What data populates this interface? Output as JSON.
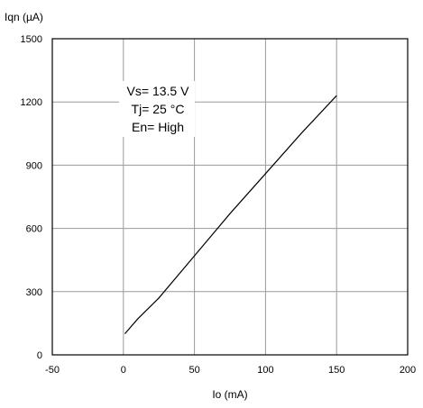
{
  "chart_data": {
    "type": "line",
    "title": "",
    "ylabel": "Iqn (µA)",
    "xlabel": "Io (mA)",
    "xlim": [
      -50,
      200
    ],
    "ylim": [
      0,
      1500
    ],
    "xticks": [
      "-50",
      "0",
      "50",
      "100",
      "150",
      "200"
    ],
    "yticks": [
      "0",
      "300",
      "600",
      "900",
      "1200",
      "1500"
    ],
    "grid": true,
    "legend": "none",
    "annotations": [
      "Vs= 13.5 V",
      "Tj= 25 °C",
      "En= High"
    ],
    "series": [
      {
        "x": [
          1,
          10,
          25,
          50,
          75,
          100,
          125,
          150
        ],
        "y": [
          100,
          170,
          270,
          470,
          670,
          860,
          1050,
          1230
        ]
      }
    ]
  }
}
